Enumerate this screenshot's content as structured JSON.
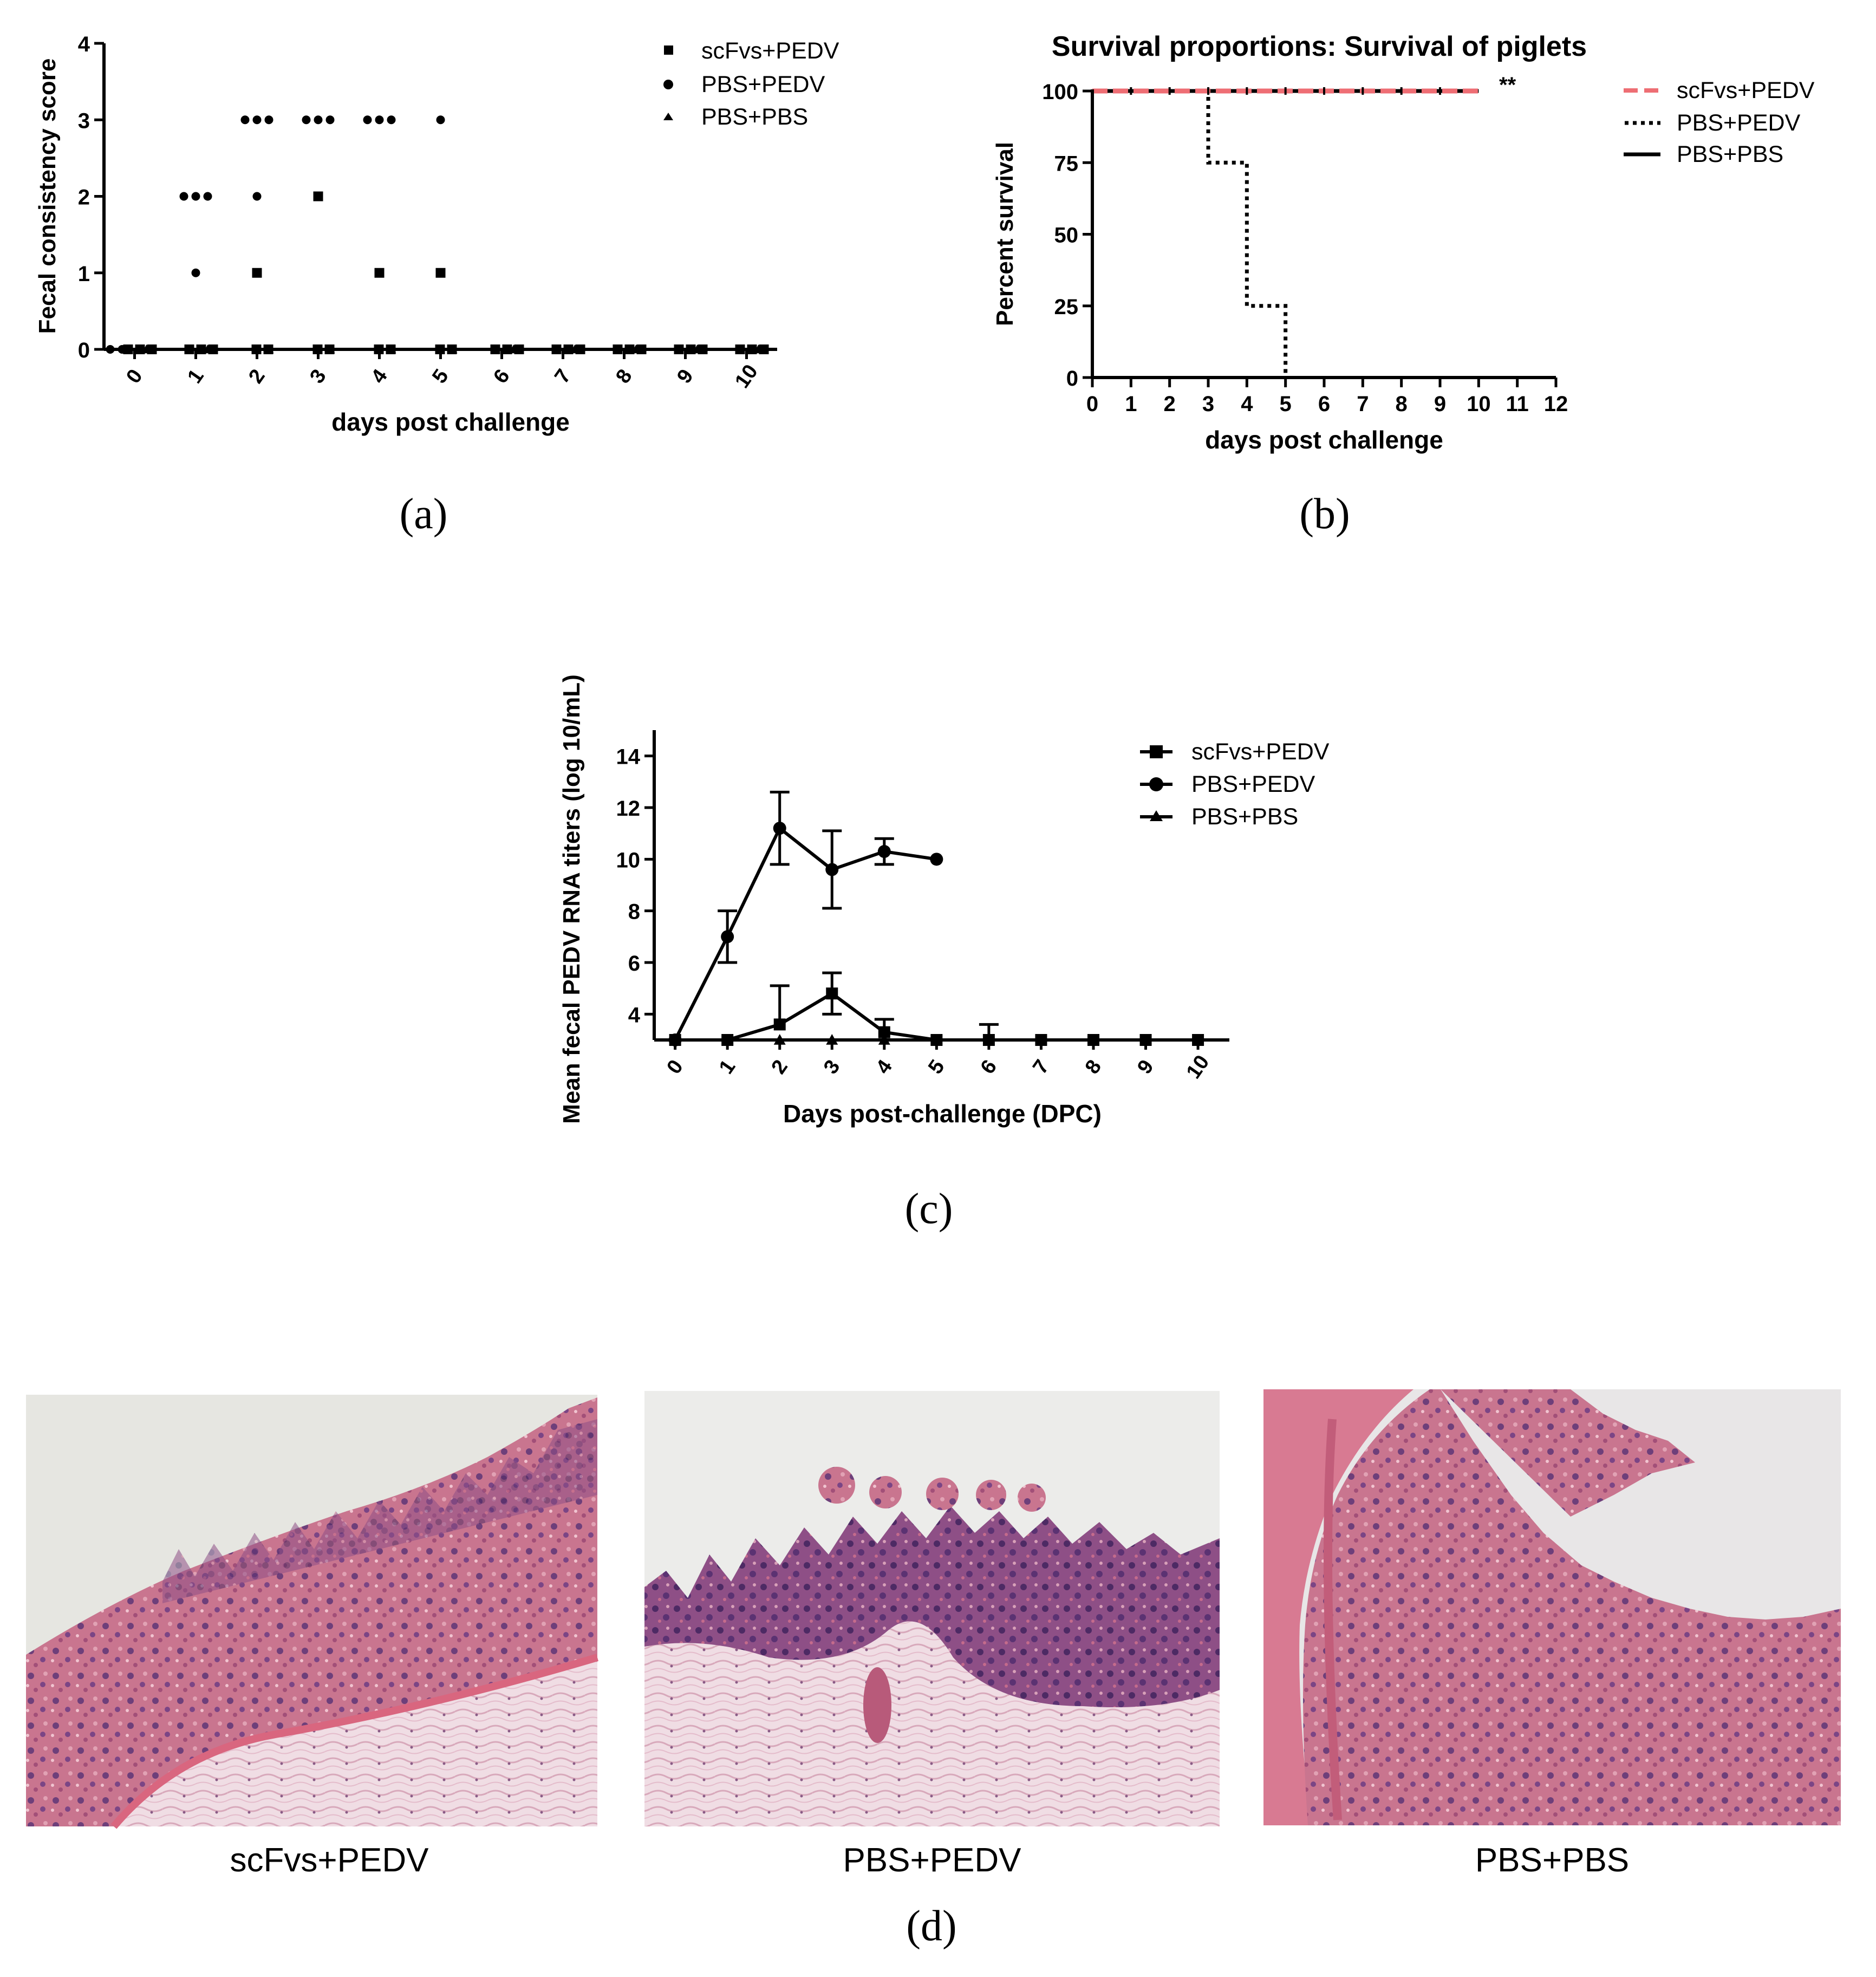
{
  "colors": {
    "scfvs_survival": "#ee6e74"
  },
  "chart_data": [
    {
      "id": "a",
      "type": "scatter",
      "panel_label": "(a)",
      "title": "",
      "xlabel": "days post challenge",
      "ylabel": "Fecal consistency score",
      "xlim": [
        -0.5,
        10.5
      ],
      "ylim": [
        0,
        4
      ],
      "x_ticks": [
        "0",
        "1",
        "2",
        "3",
        "4",
        "5",
        "6",
        "7",
        "8",
        "9",
        "10"
      ],
      "y_ticks": [
        0,
        1,
        2,
        3,
        4
      ],
      "legend": [
        "scFvs+PEDV",
        "PBS+PEDV",
        "PBS+PBS"
      ],
      "series": [
        {
          "name": "scFvs+PEDV",
          "marker": "square",
          "points": [
            [
              0,
              0
            ],
            [
              0,
              0
            ],
            [
              0,
              0
            ],
            [
              1,
              0
            ],
            [
              1,
              0
            ],
            [
              1,
              0
            ],
            [
              2,
              1
            ],
            [
              2,
              0
            ],
            [
              2,
              0
            ],
            [
              3,
              2
            ],
            [
              3,
              0
            ],
            [
              3,
              0
            ],
            [
              4,
              1
            ],
            [
              4,
              0
            ],
            [
              4,
              0
            ],
            [
              5,
              1
            ],
            [
              5,
              0
            ],
            [
              5,
              0
            ],
            [
              6,
              0
            ],
            [
              6,
              0
            ],
            [
              6,
              0
            ],
            [
              7,
              0
            ],
            [
              7,
              0
            ],
            [
              7,
              0
            ],
            [
              8,
              0
            ],
            [
              8,
              0
            ],
            [
              8,
              0
            ],
            [
              9,
              0
            ],
            [
              9,
              0
            ],
            [
              9,
              0
            ],
            [
              10,
              0
            ],
            [
              10,
              0
            ],
            [
              10,
              0
            ]
          ]
        },
        {
          "name": "PBS+PEDV",
          "marker": "circle",
          "points": [
            [
              0,
              0
            ],
            [
              0,
              0
            ],
            [
              1,
              2
            ],
            [
              1,
              2
            ],
            [
              1,
              2
            ],
            [
              1,
              1
            ],
            [
              2,
              3
            ],
            [
              2,
              3
            ],
            [
              2,
              3
            ],
            [
              2,
              2
            ],
            [
              3,
              3
            ],
            [
              3,
              3
            ],
            [
              3,
              3
            ],
            [
              3,
              2
            ],
            [
              4,
              3
            ],
            [
              4,
              3
            ],
            [
              4,
              3
            ],
            [
              5,
              3
            ]
          ]
        },
        {
          "name": "PBS+PBS",
          "marker": "triangle",
          "points": [
            [
              0,
              0
            ],
            [
              1,
              0
            ],
            [
              2,
              0
            ],
            [
              3,
              0
            ],
            [
              4,
              0
            ],
            [
              5,
              0
            ],
            [
              6,
              0
            ],
            [
              7,
              0
            ],
            [
              8,
              0
            ],
            [
              9,
              0
            ],
            [
              10,
              0
            ]
          ]
        }
      ]
    },
    {
      "id": "b",
      "type": "line",
      "panel_label": "(b)",
      "title": "Survival proportions: Survival of piglets",
      "xlabel": "days post challenge",
      "ylabel": "Percent survival",
      "xlim": [
        0,
        12
      ],
      "ylim": [
        0,
        100
      ],
      "x_ticks": [
        0,
        1,
        2,
        3,
        4,
        5,
        6,
        7,
        8,
        9,
        10,
        11,
        12
      ],
      "y_ticks": [
        0,
        25,
        50,
        75,
        100
      ],
      "annotation": "**",
      "legend": [
        "scFvs+PEDV",
        "PBS+PEDV",
        "PBS+PBS"
      ],
      "series": [
        {
          "name": "scFvs+PEDV",
          "style": "dashed",
          "steps": [
            [
              0,
              100
            ],
            [
              10,
              100
            ]
          ]
        },
        {
          "name": "PBS+PEDV",
          "style": "dotted",
          "steps": [
            [
              0,
              100
            ],
            [
              3,
              100
            ],
            [
              3,
              75
            ],
            [
              4,
              75
            ],
            [
              4,
              25
            ],
            [
              5,
              25
            ],
            [
              5,
              0
            ]
          ]
        },
        {
          "name": "PBS+PBS",
          "style": "solid",
          "steps": [
            [
              0,
              100
            ],
            [
              10,
              100
            ]
          ]
        }
      ]
    },
    {
      "id": "c",
      "type": "line",
      "panel_label": "(c)",
      "title": "",
      "xlabel": "Days post-challenge (DPC)",
      "ylabel": "Mean fecal PEDV RNA titers (log 10/mL)",
      "xlim": [
        -0.4,
        10.6
      ],
      "ylim": [
        3,
        15
      ],
      "x_ticks": [
        "0",
        "1",
        "2",
        "3",
        "4",
        "5",
        "6",
        "7",
        "8",
        "9",
        "10"
      ],
      "y_ticks": [
        4,
        6,
        8,
        10,
        12,
        14
      ],
      "legend": [
        "scFvs+PEDV",
        "PBS+PEDV",
        "PBS+PBS"
      ],
      "series": [
        {
          "name": "scFvs+PEDV",
          "marker": "square",
          "x": [
            0,
            1,
            2,
            3,
            4,
            5,
            6,
            7,
            8,
            9,
            10
          ],
          "values": [
            3,
            3,
            3.6,
            4.8,
            3.3,
            3,
            3,
            3,
            3,
            3,
            3
          ],
          "error": [
            0,
            0,
            1.5,
            0.8,
            0.5,
            0,
            0.6,
            0,
            0,
            0,
            0
          ]
        },
        {
          "name": "PBS+PEDV",
          "marker": "circle",
          "x": [
            0,
            1,
            2,
            3,
            4,
            5
          ],
          "values": [
            3,
            7,
            11.2,
            9.6,
            10.3,
            10
          ],
          "error": [
            0,
            1,
            1.4,
            1.5,
            0.5,
            0
          ]
        },
        {
          "name": "PBS+PBS",
          "marker": "triangle",
          "x": [
            0,
            1,
            2,
            3,
            4,
            5,
            6,
            7,
            8,
            9,
            10
          ],
          "values": [
            3,
            3,
            3,
            3,
            3,
            3,
            3,
            3,
            3,
            3,
            3
          ],
          "error": [
            0,
            0,
            0,
            0,
            0,
            0,
            0,
            0,
            0,
            0,
            0
          ]
        }
      ]
    }
  ],
  "histology": {
    "panel_label": "(d)",
    "captions": [
      "scFvs+PEDV",
      "PBS+PEDV",
      "PBS+PBS"
    ]
  }
}
